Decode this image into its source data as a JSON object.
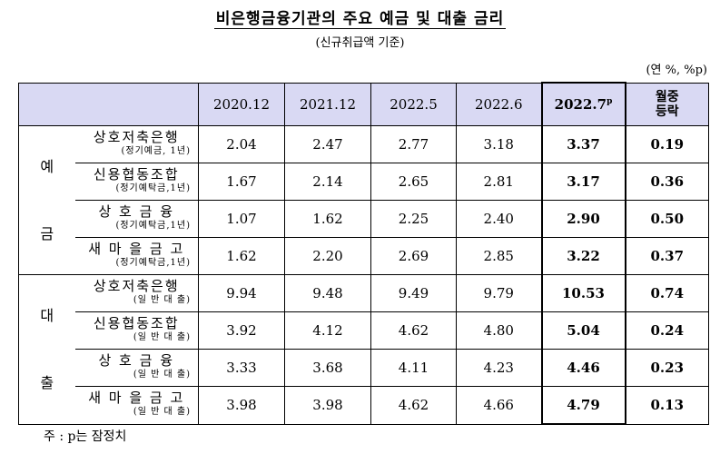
{
  "title": "비은행금융기관의 주요 예금 및 대출 금리",
  "subtitle": "(신규취급액 기준)",
  "unit": "(연 %, %p)",
  "note": "주 : p는 잠정치",
  "table": {
    "columns": [
      "2020.12",
      "2021.12",
      "2022.5",
      "2022.6",
      "2022.7",
      "월중등락"
    ],
    "latest_col_base": "2022.7",
    "latest_col_sup": "p",
    "change_col_line1": "월중",
    "change_col_line2": "등락",
    "groups": [
      {
        "label_line1": "예",
        "label_line2": "금",
        "rows": [
          {
            "name": "상호저축은행",
            "sub": "(정기예금, 1년)",
            "values": [
              "2.04",
              "2.47",
              "2.77",
              "3.18",
              "3.37",
              "0.19"
            ]
          },
          {
            "name": "신용협동조합",
            "sub": "(정기예탁금,1년)",
            "values": [
              "1.67",
              "2.14",
              "2.65",
              "2.81",
              "3.17",
              "0.36"
            ]
          },
          {
            "name": "상 호 금 융",
            "sub": "(정기예탁금,1년)",
            "values": [
              "1.07",
              "1.62",
              "2.25",
              "2.40",
              "2.90",
              "0.50"
            ]
          },
          {
            "name": "새 마 을 금 고",
            "sub": "(정기예탁금,1년)",
            "values": [
              "1.62",
              "2.20",
              "2.69",
              "2.85",
              "3.22",
              "0.37"
            ]
          }
        ]
      },
      {
        "label_line1": "대",
        "label_line2": "출",
        "rows": [
          {
            "name": "상호저축은행",
            "sub": "(일 반 대 출)",
            "values": [
              "9.94",
              "9.48",
              "9.49",
              "9.79",
              "10.53",
              "0.74"
            ]
          },
          {
            "name": "신용협동조합",
            "sub": "(일 반 대 출)",
            "values": [
              "3.92",
              "4.12",
              "4.62",
              "4.80",
              "5.04",
              "0.24"
            ]
          },
          {
            "name": "상 호 금 융",
            "sub": "(일 반 대 출)",
            "values": [
              "3.33",
              "3.68",
              "4.11",
              "4.23",
              "4.46",
              "0.23"
            ]
          },
          {
            "name": "새 마 을 금 고",
            "sub": "(일 반 대 출)",
            "values": [
              "3.98",
              "3.98",
              "4.62",
              "4.66",
              "4.79",
              "0.13"
            ]
          }
        ]
      }
    ]
  }
}
